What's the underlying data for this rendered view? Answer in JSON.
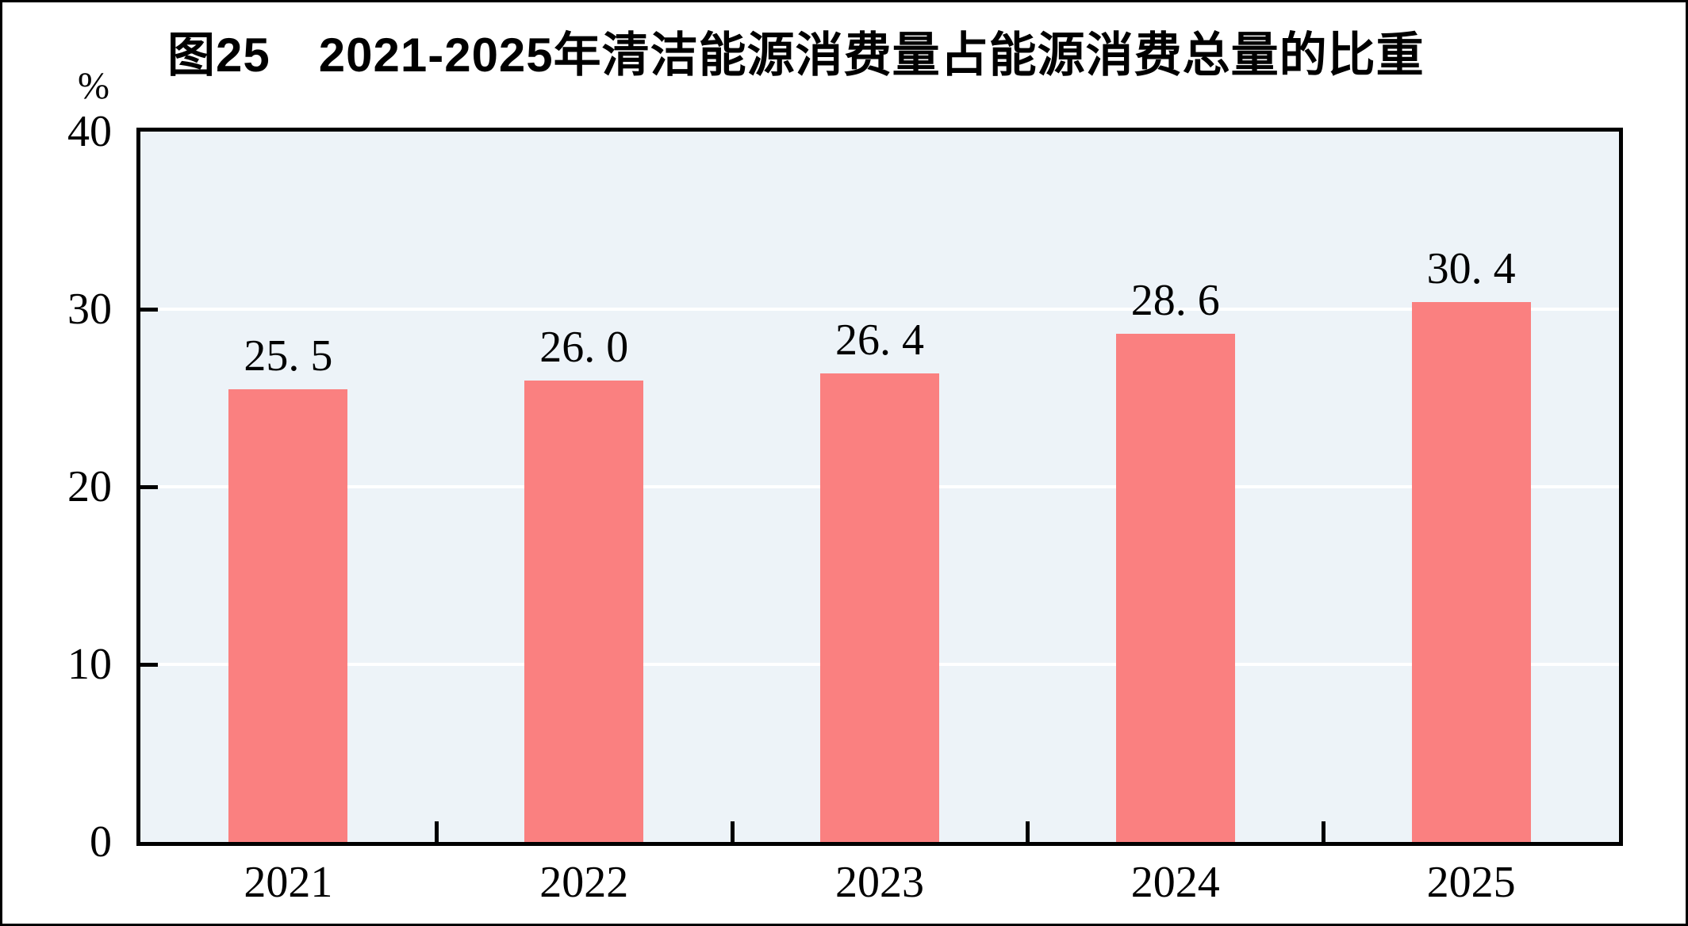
{
  "chart_data": {
    "type": "bar",
    "title": "图25　2021-2025年清洁能源消费量占能源消费总量的比重",
    "unit_label": "%",
    "categories": [
      "2021",
      "2022",
      "2023",
      "2024",
      "2025"
    ],
    "values": [
      25.5,
      26.0,
      26.4,
      28.6,
      30.4
    ],
    "value_labels": [
      "25. 5",
      "26. 0",
      "26. 4",
      "28. 6",
      "30. 4"
    ],
    "ylim": [
      0,
      40
    ],
    "yticks": [
      0,
      10,
      20,
      30,
      40
    ],
    "gridline_values": [
      10,
      20,
      30
    ],
    "grid": true,
    "legend_position": "none",
    "xlabel": "",
    "ylabel": "%",
    "bar_color": "#FA8080",
    "plot_bg_color": "#EDF3F8",
    "gridline_color": "#FFFFFF",
    "axis_color": "#000000",
    "text_color": "#000000"
  }
}
